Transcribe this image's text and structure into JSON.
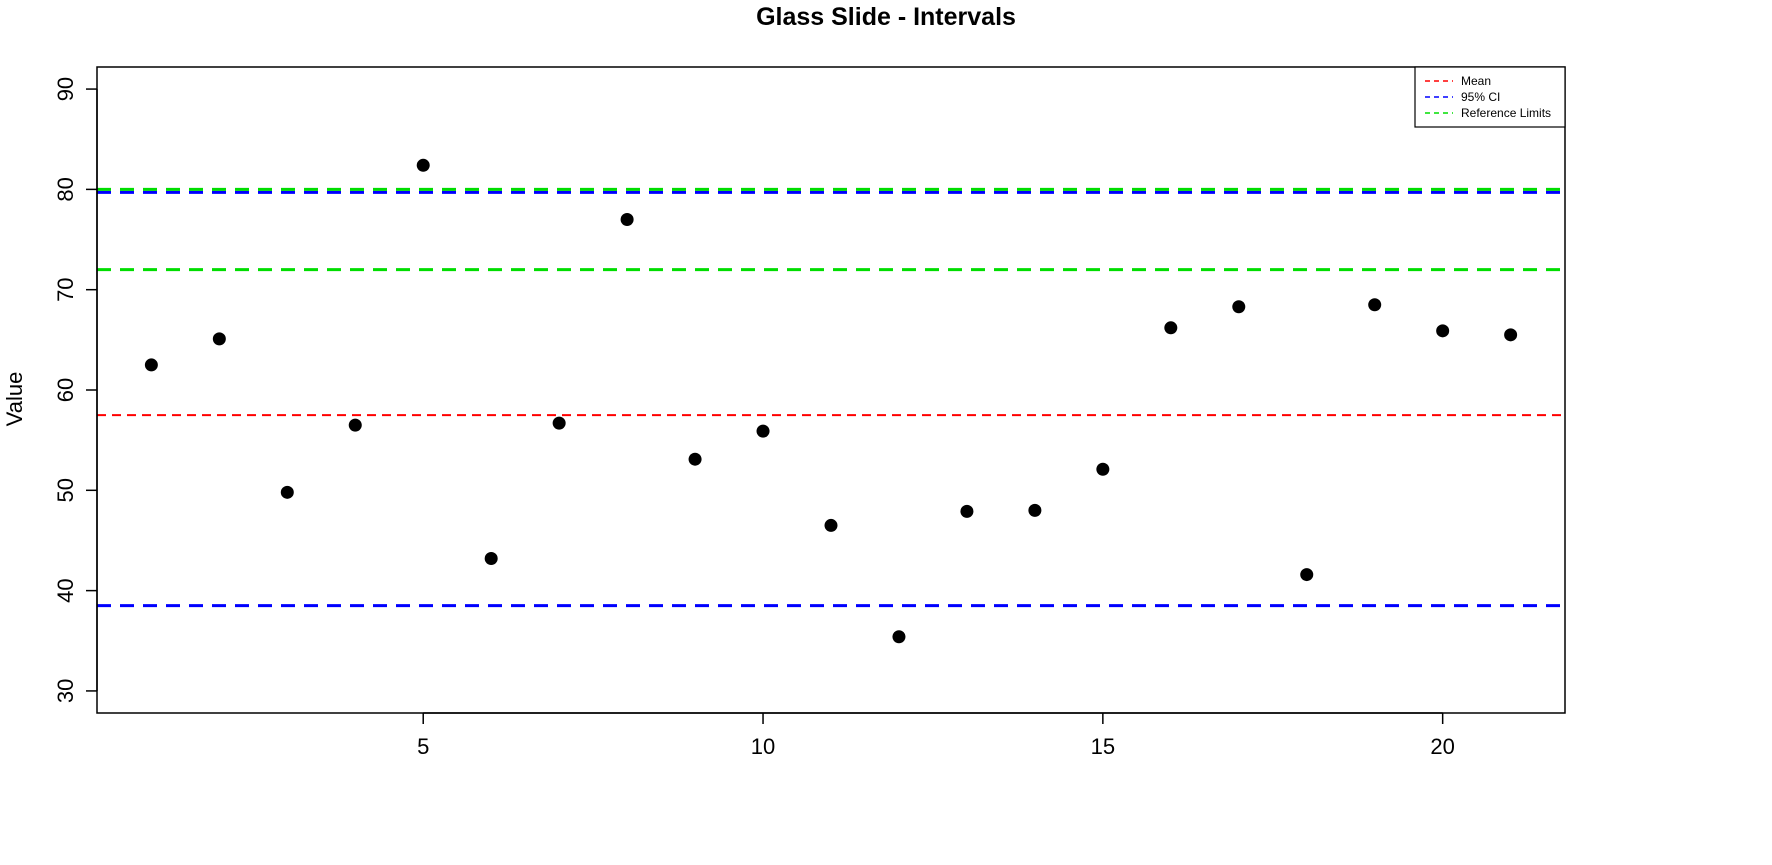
{
  "chart_data": {
    "type": "scatter",
    "title": "Glass Slide - Intervals",
    "xlabel": "",
    "ylabel": "Value",
    "xlim": [
      0.2,
      21.8
    ],
    "ylim": [
      27.8,
      92.2
    ],
    "xticks": [
      5,
      10,
      15,
      20
    ],
    "yticks": [
      30,
      40,
      50,
      60,
      70,
      80,
      90
    ],
    "grid": false,
    "legend_position": "top-right",
    "points": {
      "x": [
        1,
        2,
        3,
        4,
        5,
        6,
        7,
        8,
        9,
        10,
        11,
        12,
        13,
        14,
        15,
        16,
        17,
        18,
        19,
        20,
        21
      ],
      "y": [
        62.5,
        65.1,
        49.8,
        56.5,
        82.4,
        43.2,
        56.7,
        77.0,
        53.1,
        55.9,
        46.5,
        35.4,
        47.9,
        48.0,
        52.1,
        66.2,
        68.3,
        41.6,
        68.5,
        65.9,
        65.5
      ],
      "color": "#000000"
    },
    "reference_lines": [
      {
        "name": "Mean",
        "y": [
          57.5
        ],
        "color": "#ff0000",
        "style": "dashed"
      },
      {
        "name": "95% CI",
        "y": [
          38.5,
          79.7
        ],
        "color": "#0000ff",
        "style": "dashed"
      },
      {
        "name": "Reference Limits",
        "y": [
          72.0,
          80.0
        ],
        "color": "#00dd00",
        "style": "dashed"
      }
    ],
    "legend": [
      "Mean",
      "95% CI",
      "Reference Limits"
    ]
  }
}
